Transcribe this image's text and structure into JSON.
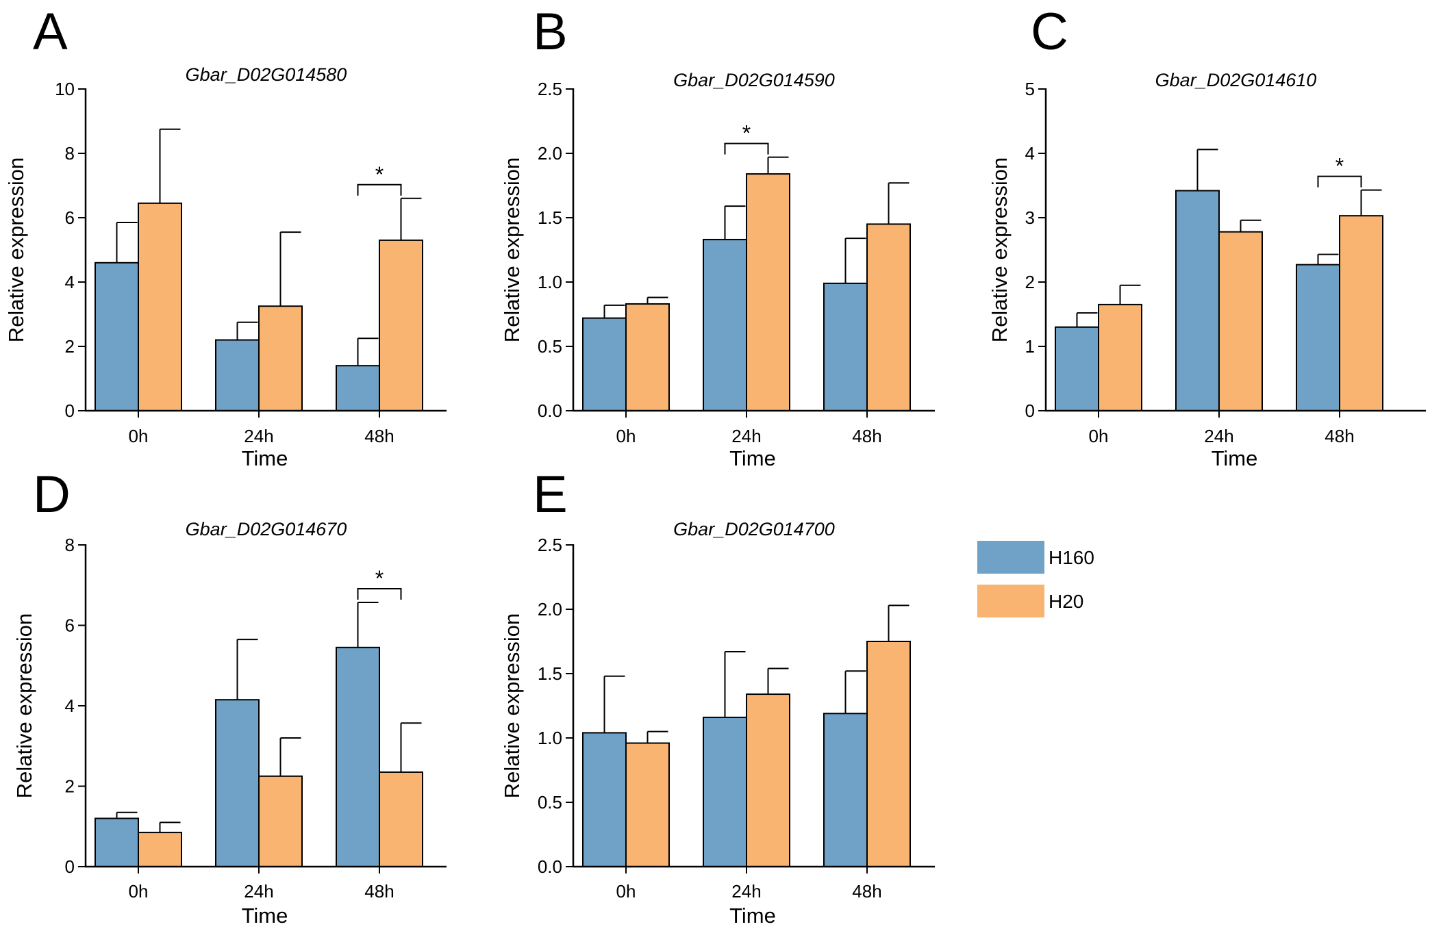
{
  "colors": {
    "H160": "#6fa2c6",
    "H20": "#f8b470",
    "axis": "#000000"
  },
  "legend": {
    "items": [
      {
        "name": "H160",
        "color": "#6fa2c6"
      },
      {
        "name": "H20",
        "color": "#f8b470"
      }
    ]
  },
  "chart_data": [
    {
      "panel": "A",
      "type": "bar",
      "title": "Gbar_D02G014580",
      "xlabel": "Time",
      "ylabel": "Relative expression",
      "categories": [
        "0h",
        "24h",
        "48h"
      ],
      "ylim": [
        0,
        10
      ],
      "yticks": [
        "0",
        "2",
        "4",
        "6",
        "8",
        "10"
      ],
      "series": [
        {
          "name": "H160",
          "values": [
            4.6,
            2.2,
            1.4
          ],
          "errors": [
            1.25,
            0.55,
            0.85
          ]
        },
        {
          "name": "H20",
          "values": [
            6.45,
            3.25,
            5.3
          ],
          "errors": [
            2.3,
            2.3,
            1.3
          ]
        }
      ],
      "significance": [
        {
          "category": "48h",
          "label": "*"
        }
      ]
    },
    {
      "panel": "B",
      "type": "bar",
      "title": "Gbar_D02G014590",
      "xlabel": "Time",
      "ylabel": "Relative expression",
      "categories": [
        "0h",
        "24h",
        "48h"
      ],
      "ylim": [
        0,
        2.5
      ],
      "yticks": [
        "0.0",
        "0.5",
        "1.0",
        "1.5",
        "2.0",
        "2.5"
      ],
      "series": [
        {
          "name": "H160",
          "values": [
            0.72,
            1.33,
            0.99
          ],
          "errors": [
            0.1,
            0.26,
            0.35
          ]
        },
        {
          "name": "H20",
          "values": [
            0.83,
            1.84,
            1.45
          ],
          "errors": [
            0.05,
            0.13,
            0.32
          ]
        }
      ],
      "significance": [
        {
          "category": "24h",
          "label": "*"
        }
      ]
    },
    {
      "panel": "C",
      "type": "bar",
      "title": "Gbar_D02G014610",
      "xlabel": "Time",
      "ylabel": "Relative expression",
      "categories": [
        "0h",
        "24h",
        "48h"
      ],
      "ylim": [
        0,
        5
      ],
      "yticks": [
        "0",
        "1",
        "2",
        "3",
        "4",
        "5"
      ],
      "series": [
        {
          "name": "H160",
          "values": [
            1.3,
            3.42,
            2.27
          ],
          "errors": [
            0.22,
            0.64,
            0.16
          ]
        },
        {
          "name": "H20",
          "values": [
            1.65,
            2.78,
            3.03
          ],
          "errors": [
            0.3,
            0.18,
            0.4
          ]
        }
      ],
      "significance": [
        {
          "category": "48h",
          "label": "*"
        }
      ]
    },
    {
      "panel": "D",
      "type": "bar",
      "title": "Gbar_D02G014670",
      "xlabel": "Time",
      "ylabel": "Relative expression",
      "categories": [
        "0h",
        "24h",
        "48h"
      ],
      "ylim": [
        0,
        8
      ],
      "yticks": [
        "0",
        "2",
        "4",
        "6",
        "8"
      ],
      "series": [
        {
          "name": "H160",
          "values": [
            1.2,
            4.15,
            5.45
          ],
          "errors": [
            0.15,
            1.5,
            1.12
          ]
        },
        {
          "name": "H20",
          "values": [
            0.85,
            2.25,
            2.35
          ],
          "errors": [
            0.25,
            0.95,
            1.22
          ]
        }
      ],
      "significance": [
        {
          "category": "48h",
          "label": "*"
        }
      ]
    },
    {
      "panel": "E",
      "type": "bar",
      "title": "Gbar_D02G014700",
      "xlabel": "Time",
      "ylabel": "Relative expression",
      "categories": [
        "0h",
        "24h",
        "48h"
      ],
      "ylim": [
        0,
        2.5
      ],
      "yticks": [
        "0.0",
        "0.5",
        "1.0",
        "1.5",
        "2.0",
        "2.5"
      ],
      "series": [
        {
          "name": "H160",
          "values": [
            1.04,
            1.16,
            1.19
          ],
          "errors": [
            0.44,
            0.51,
            0.33
          ]
        },
        {
          "name": "H20",
          "values": [
            0.96,
            1.34,
            1.75
          ],
          "errors": [
            0.09,
            0.2,
            0.28
          ]
        }
      ],
      "significance": []
    }
  ]
}
